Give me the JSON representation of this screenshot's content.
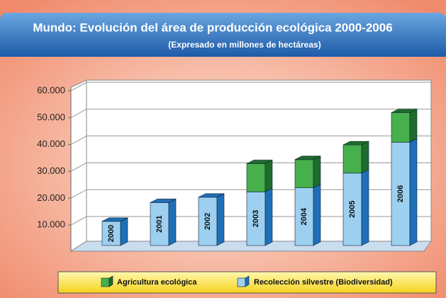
{
  "chart_data": {
    "type": "bar3d_stacked",
    "title": "Mundo: Evolución del área de producción ecológica 2000-2006",
    "subtitle": "(Expresado en millones de hectáreas)",
    "categories": [
      "2000",
      "2001",
      "2002",
      "2003",
      "2004",
      "2005",
      "2006"
    ],
    "series": [
      {
        "name": "Recolección silvestre (Biodiversidad)",
        "color": "#9dd0f0",
        "side": "#1f6fb8",
        "values": [
          9000,
          16000,
          18000,
          20000,
          21500,
          27000,
          38500
        ]
      },
      {
        "name": "Agricultura ecológica",
        "color": "#46b04c",
        "side": "#1d6c2b",
        "values": [
          0,
          0,
          0,
          10500,
          10500,
          10500,
          11000
        ]
      }
    ],
    "ylim": [
      0,
      60000
    ],
    "yticks": [
      {
        "value": 10000,
        "label": "10.000"
      },
      {
        "value": 20000,
        "label": "20.000"
      },
      {
        "value": 30000,
        "label": "30.000"
      },
      {
        "value": 40000,
        "label": "40.000"
      },
      {
        "value": 50000,
        "label": "50.000"
      },
      {
        "value": 60000,
        "label": "60.000"
      }
    ],
    "grid": true
  }
}
